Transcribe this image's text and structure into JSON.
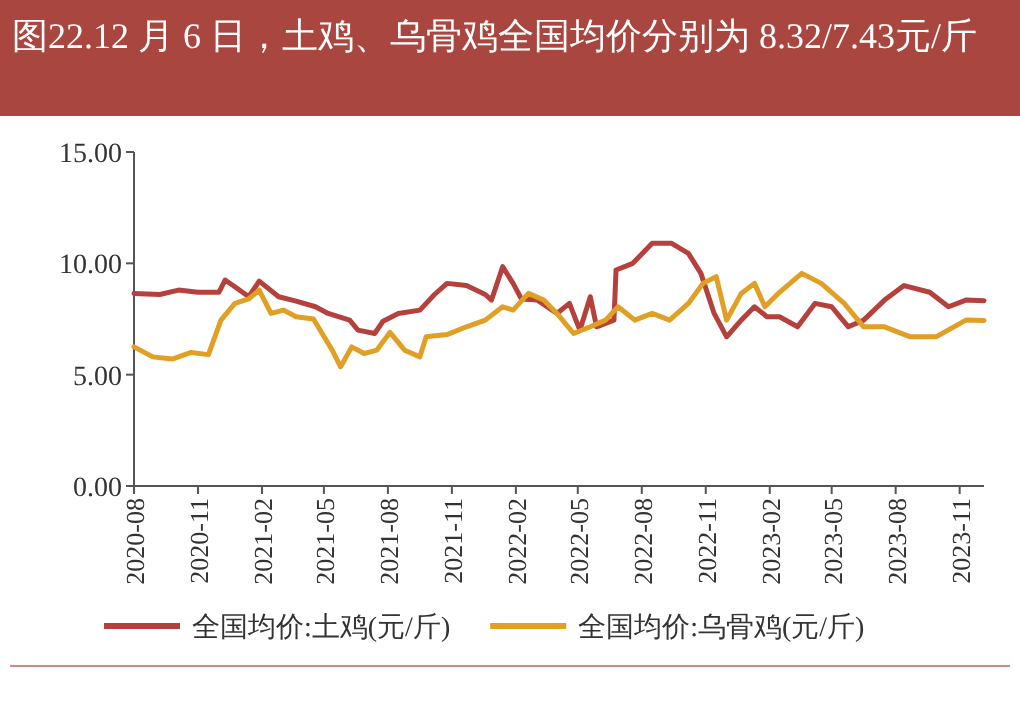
{
  "chart_data": {
    "type": "line",
    "title": "图22.12 月 6 日，土鸡、乌骨鸡全国均价分别为 8.32/7.43元/斤",
    "xlim": [
      "2020-08-01",
      "2023-12-06"
    ],
    "xticks": [
      {
        "value": "2020-08-01",
        "label": "2020-08"
      },
      {
        "value": "2020-11-01",
        "label": "2020-11"
      },
      {
        "value": "2021-02-01",
        "label": "2021-02"
      },
      {
        "value": "2021-05-01",
        "label": "2021-05"
      },
      {
        "value": "2021-08-01",
        "label": "2021-08"
      },
      {
        "value": "2021-11-01",
        "label": "2021-11"
      },
      {
        "value": "2022-02-01",
        "label": "2022-02"
      },
      {
        "value": "2022-05-01",
        "label": "2022-05"
      },
      {
        "value": "2022-08-01",
        "label": "2022-08"
      },
      {
        "value": "2022-11-01",
        "label": "2022-11"
      },
      {
        "value": "2023-02-01",
        "label": "2023-02"
      },
      {
        "value": "2023-05-01",
        "label": "2023-05"
      },
      {
        "value": "2023-08-01",
        "label": "2023-08"
      },
      {
        "value": "2023-11-01",
        "label": "2023-11"
      }
    ],
    "ylim": [
      0,
      15
    ],
    "yticks": [
      {
        "value": 0,
        "label": "0.00"
      },
      {
        "value": 5,
        "label": "5.00"
      },
      {
        "value": 10,
        "label": "10.00"
      },
      {
        "value": 15,
        "label": "15.00"
      }
    ],
    "grid": false,
    "legend": "bottom",
    "series": [
      {
        "name": "全国均价:土鸡(元/斤)",
        "color": "#b5413c",
        "x": [
          "2020-08-01",
          "2020-09-07",
          "2020-10-04",
          "2020-11-01",
          "2020-12-01",
          "2020-12-10",
          "2020-12-24",
          "2021-01-13",
          "2021-01-28",
          "2021-02-25",
          "2021-03-22",
          "2021-04-19",
          "2021-05-07",
          "2021-06-07",
          "2021-06-19",
          "2021-07-13",
          "2021-07-25",
          "2021-08-16",
          "2021-09-16",
          "2021-10-07",
          "2021-10-25",
          "2021-11-22",
          "2021-12-19",
          "2021-12-28",
          "2022-01-13",
          "2022-01-28",
          "2022-02-09",
          "2022-03-04",
          "2022-04-01",
          "2022-04-19",
          "2022-05-04",
          "2022-05-19",
          "2022-05-28",
          "2022-06-22",
          "2022-06-25",
          "2022-07-19",
          "2022-08-16",
          "2022-09-13",
          "2022-10-07",
          "2022-10-25",
          "2022-11-13",
          "2022-12-01",
          "2022-12-22",
          "2023-01-10",
          "2023-01-28",
          "2023-02-15",
          "2023-03-13",
          "2023-04-07",
          "2023-05-01",
          "2023-05-25",
          "2023-06-16",
          "2023-07-16",
          "2023-08-13",
          "2023-09-19",
          "2023-10-16",
          "2023-11-10",
          "2023-12-06"
        ],
        "values": [
          8.65,
          8.6,
          8.8,
          8.7,
          8.7,
          9.25,
          8.95,
          8.5,
          9.2,
          8.5,
          8.3,
          8.05,
          7.75,
          7.45,
          7.0,
          6.85,
          7.4,
          7.75,
          7.9,
          8.6,
          9.1,
          9.0,
          8.6,
          8.35,
          9.85,
          9.1,
          8.4,
          8.35,
          7.75,
          8.2,
          7.0,
          8.5,
          7.15,
          7.45,
          9.7,
          10.0,
          10.9,
          10.9,
          10.45,
          9.55,
          7.75,
          6.7,
          7.45,
          8.05,
          7.6,
          7.6,
          7.15,
          8.2,
          8.05,
          7.15,
          7.45,
          8.35,
          9.0,
          8.7,
          8.05,
          8.35,
          8.32
        ]
      },
      {
        "name": "全国均价:乌骨鸡(元/斤)",
        "color": "#e09f25",
        "x": [
          "2020-08-01",
          "2020-08-28",
          "2020-09-25",
          "2020-10-22",
          "2020-11-16",
          "2020-12-04",
          "2020-12-24",
          "2021-01-13",
          "2021-01-28",
          "2021-02-14",
          "2021-03-04",
          "2021-03-22",
          "2021-04-16",
          "2021-05-13",
          "2021-05-25",
          "2021-06-10",
          "2021-06-28",
          "2021-07-16",
          "2021-08-04",
          "2021-08-25",
          "2021-09-16",
          "2021-09-25",
          "2021-10-25",
          "2021-11-22",
          "2021-12-19",
          "2022-01-13",
          "2022-01-28",
          "2022-02-19",
          "2022-03-13",
          "2022-04-01",
          "2022-04-25",
          "2022-05-19",
          "2022-06-10",
          "2022-06-28",
          "2022-07-22",
          "2022-08-16",
          "2022-09-10",
          "2022-10-07",
          "2022-10-28",
          "2022-11-16",
          "2022-12-01",
          "2022-12-22",
          "2023-01-10",
          "2023-01-25",
          "2023-02-15",
          "2023-03-19",
          "2023-04-16",
          "2023-05-19",
          "2023-06-16",
          "2023-07-16",
          "2023-08-22",
          "2023-09-28",
          "2023-11-10",
          "2023-12-06"
        ],
        "values": [
          6.25,
          5.8,
          5.7,
          6.0,
          5.9,
          7.45,
          8.2,
          8.4,
          8.8,
          7.75,
          7.9,
          7.6,
          7.5,
          6.1,
          5.35,
          6.25,
          5.95,
          6.1,
          6.9,
          6.1,
          5.8,
          6.7,
          6.8,
          7.15,
          7.45,
          8.05,
          7.9,
          8.65,
          8.35,
          7.75,
          6.85,
          7.15,
          7.45,
          8.05,
          7.45,
          7.75,
          7.45,
          8.2,
          9.1,
          9.4,
          7.45,
          8.65,
          9.1,
          8.05,
          8.7,
          9.55,
          9.1,
          8.2,
          7.15,
          7.15,
          6.7,
          6.7,
          7.45,
          7.43
        ]
      }
    ]
  }
}
